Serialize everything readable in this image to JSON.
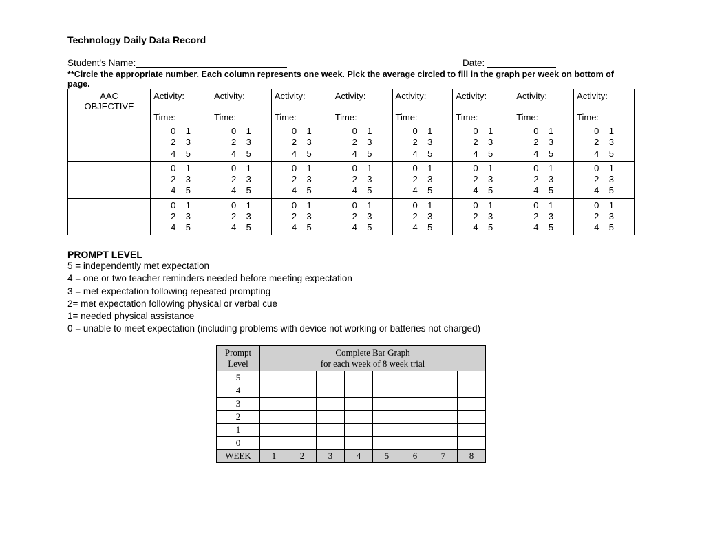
{
  "title": "Technology Daily Data Record",
  "header": {
    "name_label": "Student's Name:",
    "date_label": "Date:"
  },
  "instructions": "**Circle the appropriate number. Each column represents one week. Pick the average circled to fill in the graph per week on bottom of page.",
  "main_table": {
    "objective_heading_1": "AAC",
    "objective_heading_2": "OBJECTIVE",
    "activity_label": "Activity:",
    "time_label": "Time:",
    "col_count": 8,
    "row_count": 3,
    "numbers": [
      "0",
      "1",
      "2",
      "3",
      "4",
      "5"
    ]
  },
  "prompt": {
    "heading": "PROMPT LEVEL",
    "levels": [
      "5 = independently met expectation",
      "4 = one or two teacher reminders needed before meeting expectation",
      "3 = met expectation following repeated prompting",
      "2= met expectation following physical or verbal cue",
      "1= needed physical assistance",
      "0 = unable to meet expectation (including problems with device not working or batteries not charged)"
    ]
  },
  "graph": {
    "pl_label_1": "Prompt",
    "pl_label_2": "Level",
    "title_1": "Complete Bar Graph",
    "title_2": "for each week of 8 week trial",
    "levels": [
      "5",
      "4",
      "3",
      "2",
      "1",
      "0"
    ],
    "week_label": "WEEK",
    "weeks": [
      "1",
      "2",
      "3",
      "4",
      "5",
      "6",
      "7",
      "8"
    ]
  }
}
